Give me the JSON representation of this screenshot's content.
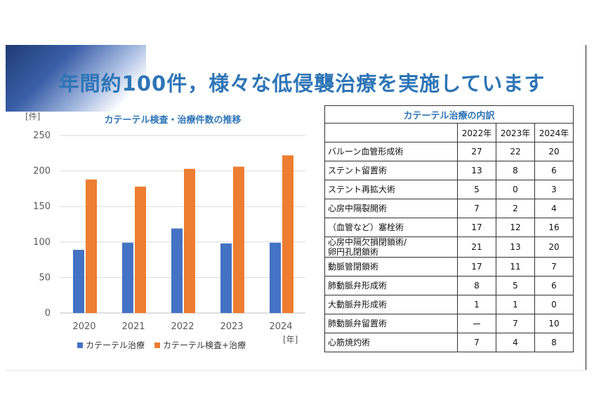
{
  "title": "年間約100件，様々な低侵襲治療を実施しています",
  "chart_data": {
    "type": "bar",
    "title": "カテーテル検査・治療件数の推移",
    "xlabel": "[年]",
    "ylabel": "[件]",
    "categories": [
      "2020",
      "2021",
      "2022",
      "2023",
      "2024"
    ],
    "ylim": [
      0,
      250
    ],
    "yticks": [
      0,
      50,
      100,
      150,
      200,
      250
    ],
    "grid": true,
    "legend_position": "bottom",
    "series": [
      {
        "name": "カテーテル治療",
        "color": "#4472c4",
        "values": [
          89,
          99,
          119,
          98,
          99
        ]
      },
      {
        "name": "カテーテル検査+治療",
        "color": "#ed7d31",
        "values": [
          188,
          178,
          203,
          206,
          222
        ]
      }
    ]
  },
  "table": {
    "title": "カテーテル治療の内訳",
    "headers": [
      "2022年",
      "2023年",
      "2024年"
    ],
    "rows": [
      {
        "label": "バルーン血管形成術",
        "values": [
          "27",
          "22",
          "20"
        ]
      },
      {
        "label": "ステント留置術",
        "values": [
          "13",
          "8",
          "6"
        ]
      },
      {
        "label": "ステント再拡大術",
        "values": [
          "5",
          "0",
          "3"
        ]
      },
      {
        "label": "心房中隔裂開術",
        "values": [
          "7",
          "2",
          "4"
        ]
      },
      {
        "label": "（血管など）塞栓術",
        "values": [
          "17",
          "12",
          "16"
        ]
      },
      {
        "label": "心房中隔欠損閉鎖術/\n卵円孔閉鎖術",
        "values": [
          "21",
          "13",
          "20"
        ]
      },
      {
        "label": "動脈管閉鎖術",
        "values": [
          "17",
          "11",
          "7"
        ]
      },
      {
        "label": "肺動脈弁形成術",
        "values": [
          "8",
          "5",
          "6"
        ]
      },
      {
        "label": "大動脈弁形成術",
        "values": [
          "1",
          "1",
          "0"
        ]
      },
      {
        "label": "肺動脈弁留置術",
        "values": [
          "ー",
          "7",
          "10"
        ]
      },
      {
        "label": "心筋焼灼術",
        "values": [
          "7",
          "4",
          "8"
        ]
      }
    ]
  }
}
